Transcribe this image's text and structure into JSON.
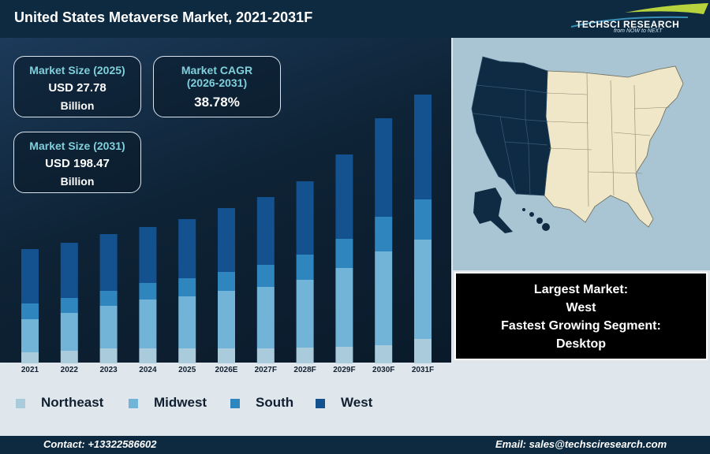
{
  "header": {
    "title": "United States Metaverse Market, 2021-2031F",
    "logo_main": "TECHSCI RESEARCH",
    "logo_tagline": "from NOW to NEXT"
  },
  "stats": {
    "size_2025": {
      "label": "Market Size (2025)",
      "value": "USD 27.78",
      "unit": "Billion"
    },
    "cagr": {
      "label": "Market CAGR",
      "label2": "(2026-2031)",
      "value": "38.78%"
    },
    "size_2031": {
      "label": "Market Size (2031)",
      "value": "USD 198.47",
      "unit": "Billion"
    }
  },
  "info": {
    "largest_label": "Largest Market:",
    "largest_value": "West",
    "fastest_label": "Fastest Growing Segment:",
    "fastest_value": "Desktop"
  },
  "footer": {
    "contact": "Contact: +13322586602",
    "email": "Email: sales@techsciresearch.com"
  },
  "colors": {
    "northeast": "#a9cbdc",
    "midwest": "#72b3d8",
    "south": "#2f86bf",
    "west": "#13528f",
    "map_west": "#0f2b44",
    "map_other": "#efe7c7"
  },
  "chart_data": {
    "type": "bar",
    "stacked": true,
    "title": "",
    "xlabel": "",
    "ylabel": "",
    "categories": [
      "2021",
      "2022",
      "2023",
      "2024",
      "2025",
      "2026E",
      "2027F",
      "2028F",
      "2029F",
      "2030F",
      "2031F"
    ],
    "series": [
      {
        "name": "Northeast",
        "values": [
          14,
          16,
          19,
          19,
          19,
          19,
          19,
          20,
          21,
          23,
          31
        ]
      },
      {
        "name": "Midwest",
        "values": [
          42,
          48,
          54,
          62,
          66,
          73,
          78,
          86,
          100,
          119,
          126
        ]
      },
      {
        "name": "South",
        "values": [
          20,
          19,
          19,
          21,
          23,
          24,
          28,
          32,
          37,
          44,
          51
        ]
      },
      {
        "name": "West",
        "values": [
          69,
          70,
          72,
          71,
          75,
          81,
          86,
          93,
          107,
          125,
          133
        ]
      }
    ],
    "legend": "bottom"
  }
}
